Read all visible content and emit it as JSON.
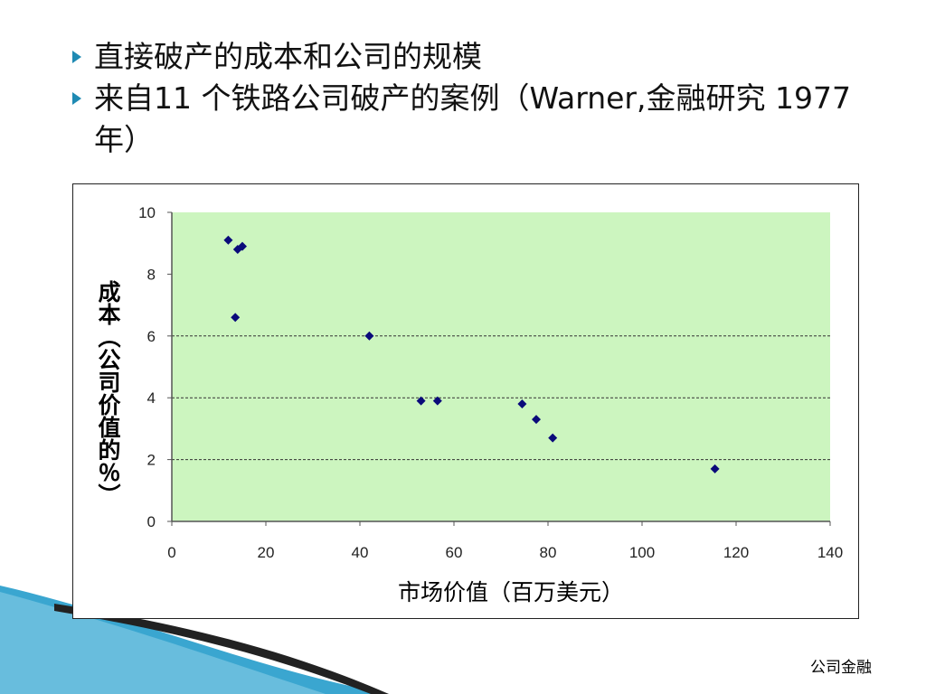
{
  "slide": {
    "bullets": [
      "直接破产的成本和公司的规模",
      "来自11 个铁路公司破产的案例（Warner,金融研究 1977 年）"
    ],
    "footer": "公司金融",
    "colors": {
      "plot_bg": "#ccf5bf",
      "marker": "#0a0a7a",
      "bullet": "#1f8ab3",
      "decor_blue": "#3aa6d0"
    }
  },
  "chart_data": {
    "type": "scatter",
    "xlabel": "市场价值（百万美元）",
    "ylabel": "成本（公司价值的％）",
    "xlim": [
      0,
      140
    ],
    "ylim": [
      0,
      10
    ],
    "xticks": [
      0,
      20,
      40,
      60,
      80,
      100,
      120,
      140
    ],
    "yticks": [
      0,
      2,
      4,
      6,
      8,
      10
    ],
    "grid": "horizontal dashed at 2, 4, 6",
    "points": [
      {
        "x": 12,
        "y": 9.1
      },
      {
        "x": 14,
        "y": 8.8
      },
      {
        "x": 15,
        "y": 8.9
      },
      {
        "x": 13.5,
        "y": 6.6
      },
      {
        "x": 42,
        "y": 6.0
      },
      {
        "x": 53,
        "y": 3.9
      },
      {
        "x": 56.5,
        "y": 3.9
      },
      {
        "x": 74.5,
        "y": 3.8
      },
      {
        "x": 77.5,
        "y": 3.3
      },
      {
        "x": 81,
        "y": 2.7
      },
      {
        "x": 115.5,
        "y": 1.7
      }
    ]
  }
}
